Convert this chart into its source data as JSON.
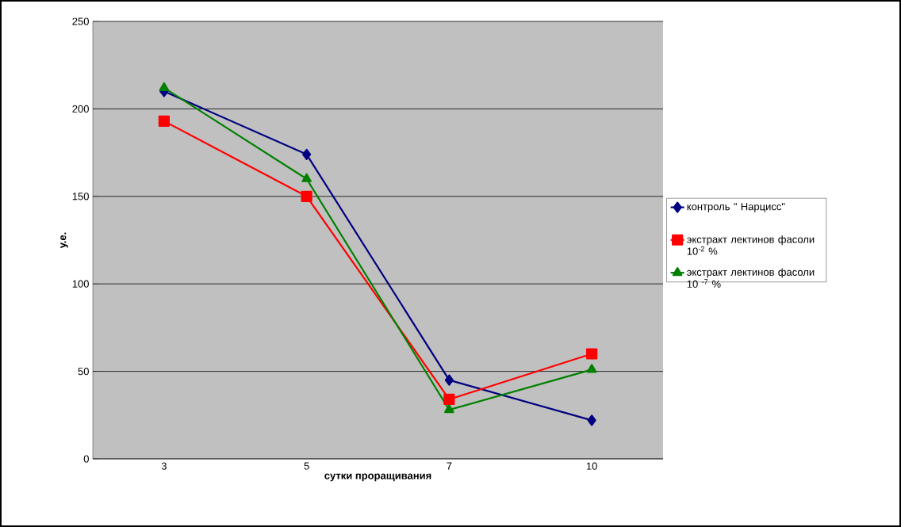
{
  "chart_data": {
    "type": "line",
    "xlabel": "сутки проращивания",
    "ylabel": "у.е.",
    "categories": [
      "3",
      "5",
      "7",
      "10"
    ],
    "series": [
      {
        "name": "контроль \" Нарцисс\"",
        "color": "#000080",
        "marker": "diamond",
        "values": [
          210,
          174,
          45,
          22
        ]
      },
      {
        "name": "экстракт лектинов фасоли 10$^{-2}$ %",
        "color": "#ff0000",
        "marker": "square",
        "values": [
          193,
          150,
          34,
          60
        ]
      },
      {
        "name": "экстракт лектинов фасоли 10 $^{-7}$ %",
        "color": "#008000",
        "marker": "triangle",
        "values": [
          212,
          160,
          28,
          51
        ]
      }
    ],
    "ylim": [
      0,
      250
    ],
    "yticks": [
      0,
      50,
      100,
      150,
      200,
      250
    ],
    "grid": "y",
    "legend": "right",
    "line_style": "solid"
  }
}
